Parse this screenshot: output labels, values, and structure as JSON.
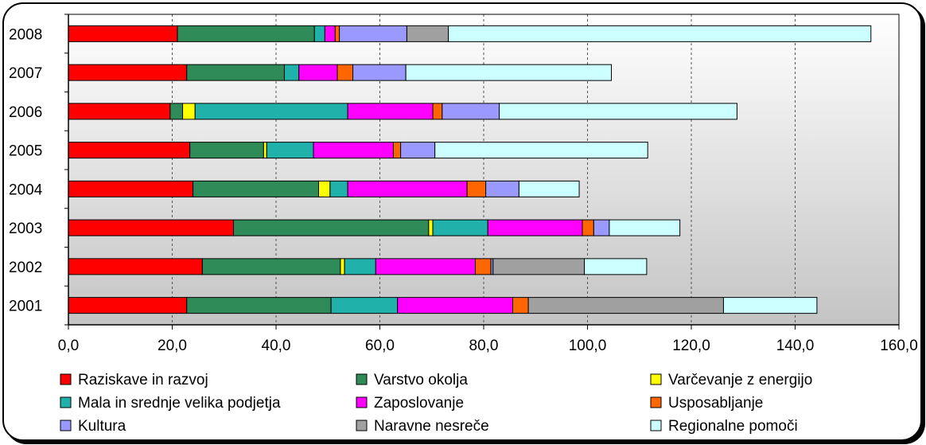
{
  "chart_data": {
    "type": "bar",
    "orientation": "horizontal",
    "stacked": true,
    "categories": [
      "2008",
      "2007",
      "2006",
      "2005",
      "2004",
      "2003",
      "2002",
      "2001"
    ],
    "x_ticks": [
      "0,0",
      "20,0",
      "40,0",
      "60,0",
      "80,0",
      "100,0",
      "120,0",
      "140,0",
      "160,0"
    ],
    "xlim": [
      0,
      160
    ],
    "grid": "vertical dashed",
    "legend_position": "bottom",
    "series": [
      {
        "name": "Raziskave in razvoj",
        "color": "#ff0000",
        "values": [
          21.0,
          22.8,
          19.6,
          23.4,
          24.0,
          31.8,
          25.8,
          22.8
        ]
      },
      {
        "name": "Varstvo okolja",
        "color": "#2e8b57",
        "values": [
          26.4,
          18.8,
          2.4,
          14.2,
          24.2,
          37.6,
          26.6,
          27.8
        ]
      },
      {
        "name": "Varčevanje z energijo",
        "color": "#ffff00",
        "values": [
          0,
          0,
          2.4,
          0.6,
          2.2,
          0.8,
          0.8,
          0
        ]
      },
      {
        "name": "Mala in srednje velika podjetja",
        "color": "#20b2aa",
        "values": [
          2.0,
          2.8,
          29.4,
          9.0,
          3.4,
          10.6,
          6.0,
          12.8
        ]
      },
      {
        "name": "Zaposlovanje",
        "color": "#ff00ff",
        "values": [
          2.0,
          7.4,
          16.4,
          15.4,
          23.0,
          18.2,
          19.2,
          22.2
        ]
      },
      {
        "name": "Usposabljanje",
        "color": "#ff6600",
        "values": [
          0.8,
          3.0,
          1.8,
          1.4,
          3.6,
          2.2,
          3.0,
          3.0
        ]
      },
      {
        "name": "Kultura",
        "color": "#9999ff",
        "values": [
          13.0,
          10.2,
          11.0,
          6.6,
          6.4,
          3.0,
          0.4,
          0
        ]
      },
      {
        "name": "Naravne nesreče",
        "color": "#a0a0a0",
        "values": [
          8.0,
          0,
          0,
          0,
          0,
          0,
          17.6,
          37.6
        ]
      },
      {
        "name": "Regionalne pomoči",
        "color": "#ccffff",
        "values": [
          81.4,
          39.6,
          45.8,
          41.0,
          11.6,
          13.6,
          12.0,
          18.0
        ]
      }
    ]
  }
}
